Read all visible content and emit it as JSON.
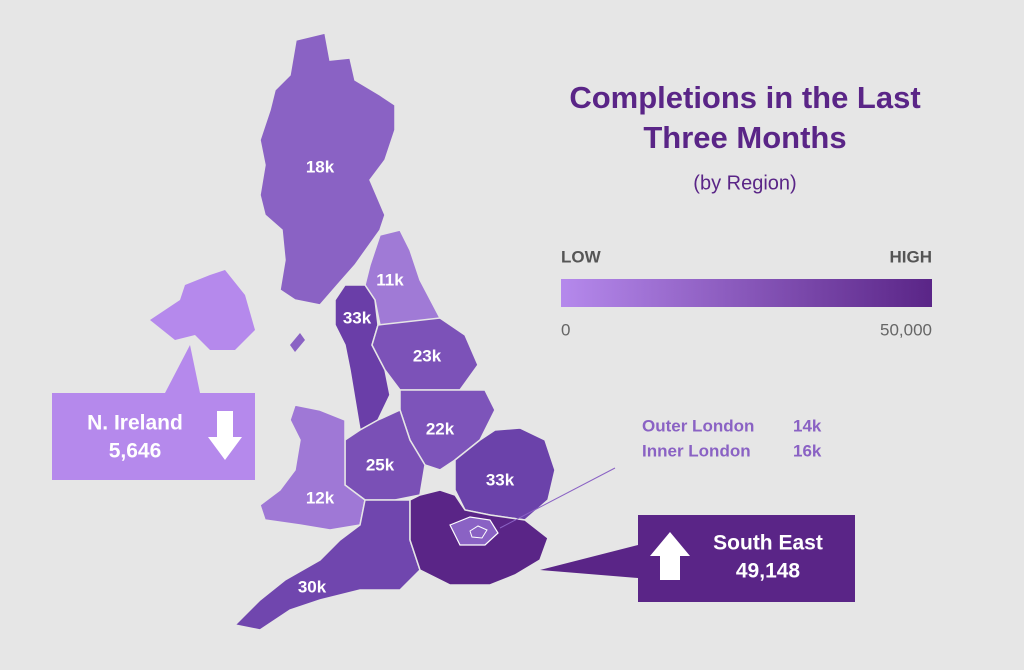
{
  "title": {
    "line1": "Completions in the Last",
    "line2": "Three Months",
    "subtitle": "(by Region)"
  },
  "legend": {
    "low": "LOW",
    "high": "HIGH",
    "min": "0",
    "max": "50,000",
    "color_low": "#b589ec",
    "color_high": "#5a2587"
  },
  "regions": [
    {
      "label": "18k",
      "color": "#8a62c4"
    },
    {
      "label": "11k",
      "color": "#a07ad6"
    },
    {
      "label": "33k",
      "color": "#6a3ea8"
    },
    {
      "label": "23k",
      "color": "#7c52b8"
    },
    {
      "label": "22k",
      "color": "#7d54ba"
    },
    {
      "label": "25k",
      "color": "#7a50b6"
    },
    {
      "label": "12k",
      "color": "#9f78d6"
    },
    {
      "label": "33k",
      "color": "#6b42aa"
    },
    {
      "label": "30k",
      "color": "#7046ae"
    }
  ],
  "london": {
    "outer_label": "Outer London",
    "outer_value": "14k",
    "inner_label": "Inner London",
    "inner_value": "16k"
  },
  "callouts": {
    "ni": {
      "name": "N. Ireland",
      "value": "5,646",
      "color": "#b589ec"
    },
    "se": {
      "name": "South East",
      "value": "49,148",
      "color": "#5a2587"
    }
  }
}
